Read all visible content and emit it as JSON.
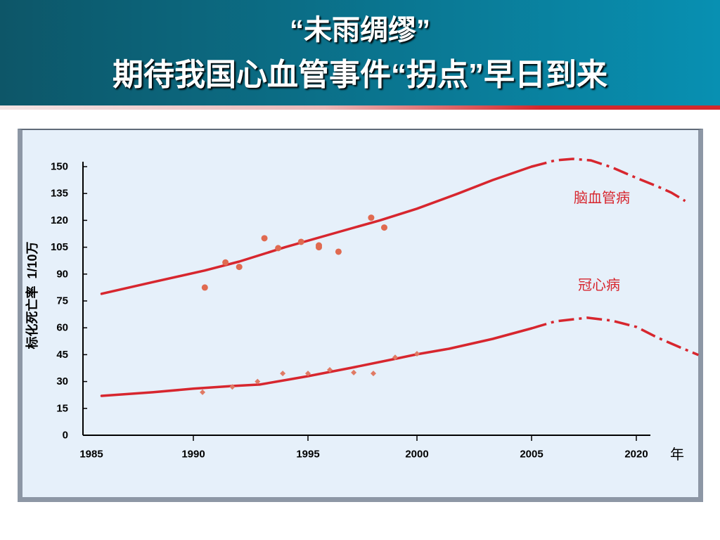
{
  "header": {
    "title_line1": "“未雨绸缪”",
    "title_line2": "期待我国心血管事件“拐点”早日到来"
  },
  "colors": {
    "header_dark": "#0d5668",
    "header_light": "#0890b2",
    "panel_bg": "#e6f0fa",
    "panel_border": "#8d97a5"
  },
  "chart_data": {
    "type": "line",
    "title": "",
    "xlabel": "年",
    "ylabel": "标化死亡率  1/10万",
    "x_ticks": [
      1985,
      1990,
      1995,
      2000,
      2005,
      2020
    ],
    "y_ticks": [
      0,
      15,
      30,
      45,
      60,
      75,
      90,
      105,
      120,
      135,
      150
    ],
    "ylim": [
      0,
      150
    ],
    "grid": false,
    "legend": "none",
    "series": [
      {
        "name": "脑血管病",
        "color": "#d7262e",
        "point_color": "#e06a50",
        "marker": "circle",
        "trend": [
          [
            1985.5,
            79
          ],
          [
            1988,
            85.5
          ],
          [
            1990.5,
            92
          ],
          [
            1992,
            97
          ],
          [
            1994,
            105
          ],
          [
            1996.4,
            113.5
          ],
          [
            1998.3,
            120
          ],
          [
            2000,
            126.5
          ],
          [
            2001.8,
            135
          ],
          [
            2003.3,
            142.5
          ],
          [
            2005,
            150
          ]
        ],
        "projection": [
          [
            2005,
            150
          ],
          [
            2008.4,
            153.5
          ],
          [
            2010.9,
            154.3
          ],
          [
            2013.5,
            153.5
          ],
          [
            2016.5,
            149.6
          ],
          [
            2020,
            143.7
          ],
          [
            2023,
            139
          ],
          [
            2025,
            135.5
          ],
          [
            2027,
            130.8
          ]
        ],
        "points": [
          [
            1990.5,
            82.5
          ],
          [
            1991.4,
            96.5
          ],
          [
            1992,
            94
          ],
          [
            1993.1,
            110
          ],
          [
            1993.7,
            104.5
          ],
          [
            1994.7,
            108
          ],
          [
            1995.5,
            106
          ],
          [
            1995.5,
            105
          ],
          [
            1996.4,
            102.5
          ],
          [
            1997.9,
            121.5
          ],
          [
            1998.5,
            116
          ]
        ]
      },
      {
        "name": "冠心病",
        "color": "#d7262e",
        "point_color": "#e07a64",
        "marker": "diamond",
        "trend": [
          [
            1985.5,
            22
          ],
          [
            1988,
            24
          ],
          [
            1990,
            26
          ],
          [
            1991.7,
            27.5
          ],
          [
            1992.9,
            28.3
          ],
          [
            1994.1,
            31
          ],
          [
            1995,
            33
          ],
          [
            1997,
            37.7
          ],
          [
            1998.9,
            42.4
          ],
          [
            2000,
            45.2
          ],
          [
            2001.4,
            48.3
          ],
          [
            2003.3,
            53.8
          ],
          [
            2005,
            59.7
          ]
        ],
        "projection": [
          [
            2005,
            59.7
          ],
          [
            2008.4,
            63.6
          ],
          [
            2013,
            65.6
          ],
          [
            2016.5,
            64
          ],
          [
            2020,
            60.5
          ],
          [
            2023,
            54.6
          ],
          [
            2026,
            49.5
          ],
          [
            2028.9,
            44.8
          ]
        ],
        "points": [
          [
            1990.4,
            24
          ],
          [
            1991.7,
            27
          ],
          [
            1992.8,
            30
          ],
          [
            1993.9,
            34.5
          ],
          [
            1995,
            34.5
          ],
          [
            1996,
            36.5
          ],
          [
            1997.1,
            35
          ],
          [
            1998,
            34.5
          ],
          [
            1999,
            43.5
          ],
          [
            2000,
            45.5
          ]
        ]
      }
    ]
  }
}
